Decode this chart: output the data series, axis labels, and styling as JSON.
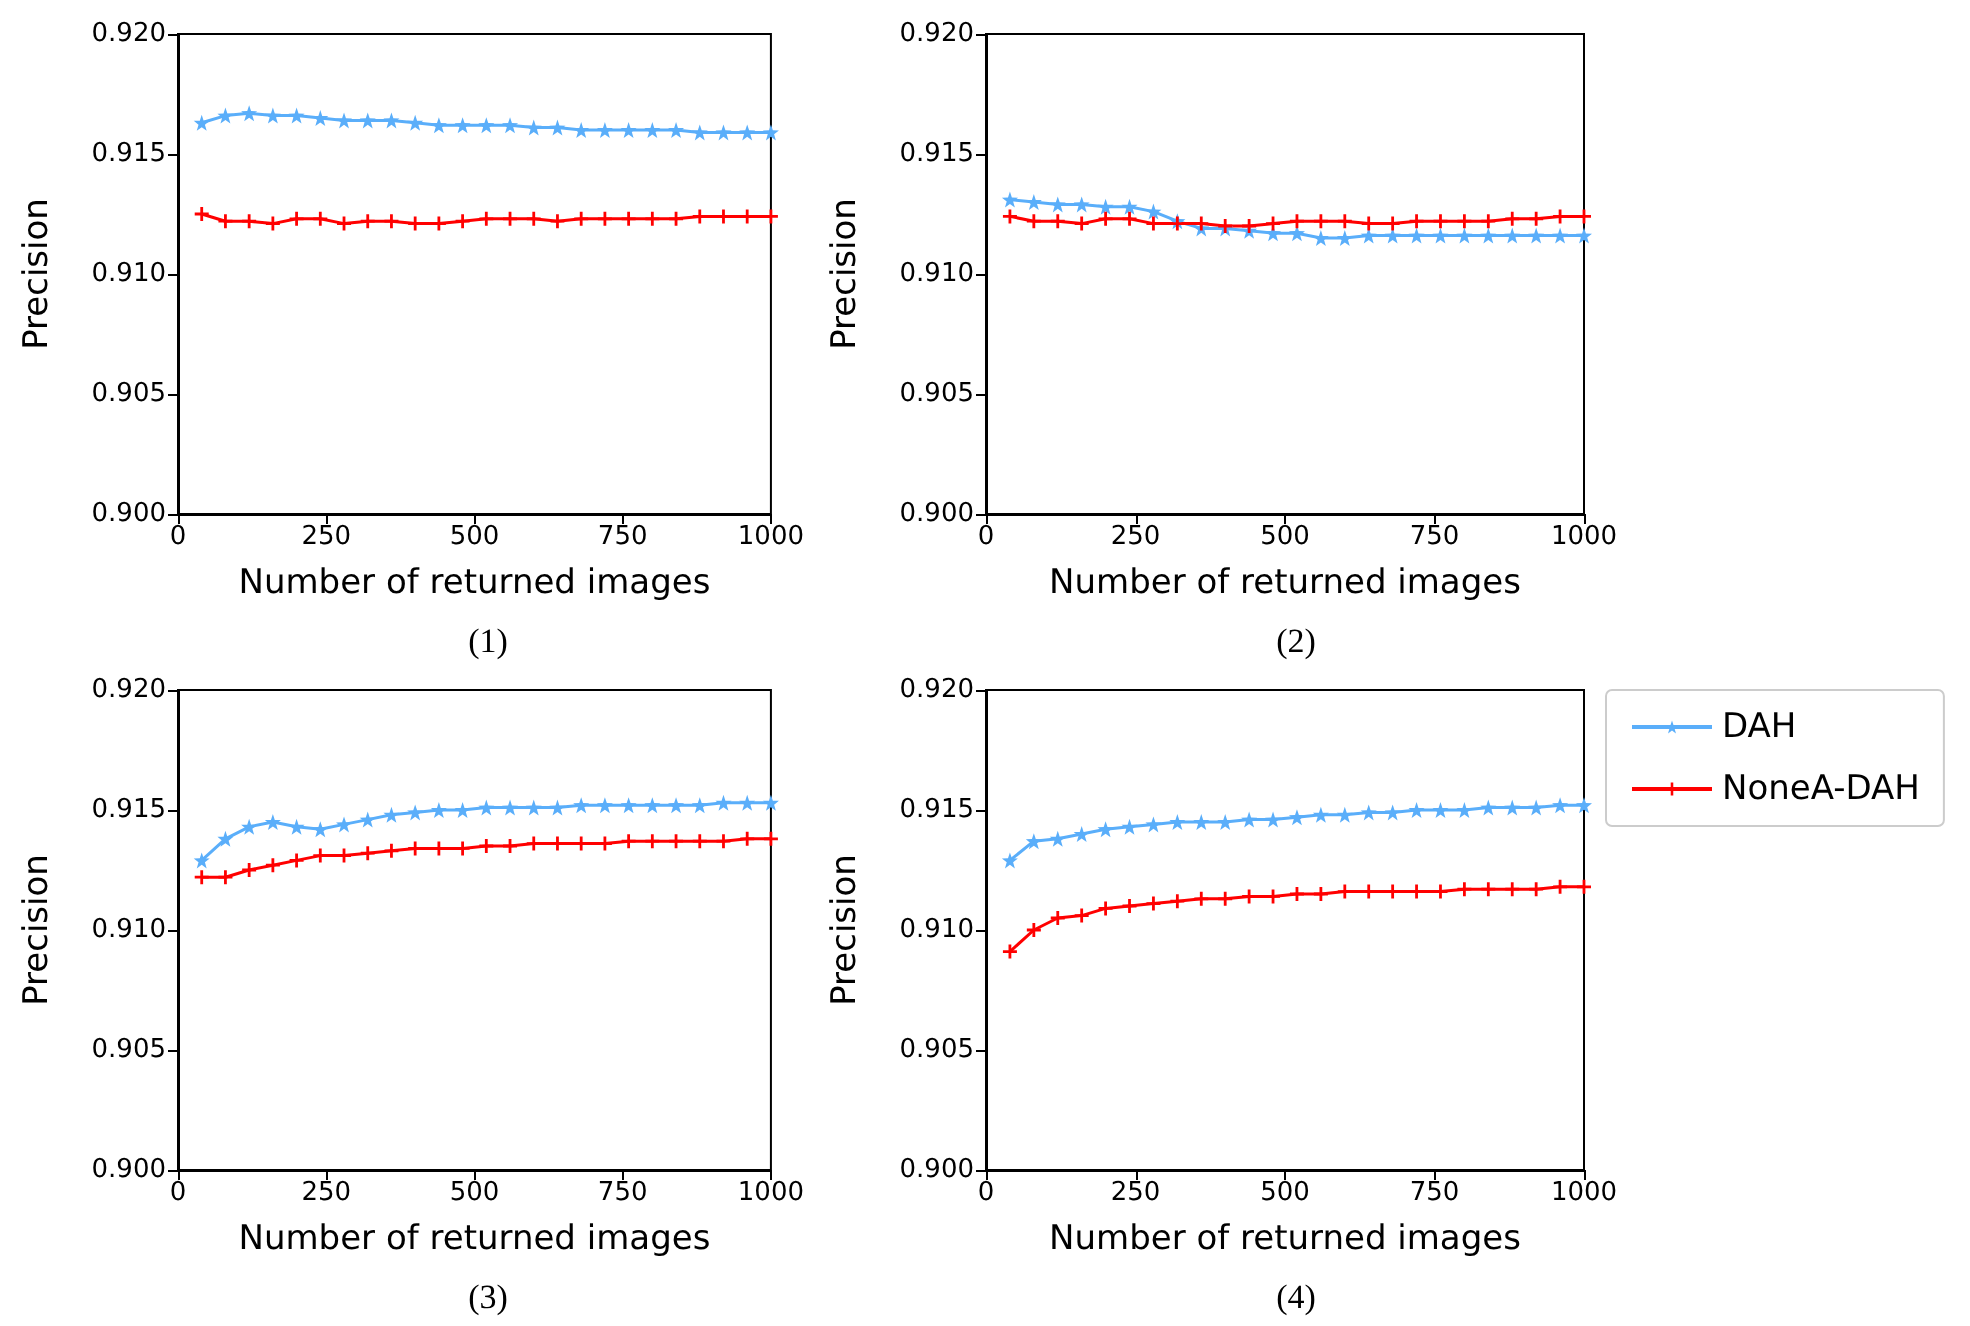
{
  "chart_data": [
    {
      "type": "line",
      "title": "(1)",
      "xlabel": "Number of returned images",
      "ylabel": "Precision",
      "xlim": [
        0,
        1000
      ],
      "xticks": [
        0,
        250,
        500,
        750,
        1000
      ],
      "ylim": [
        0.9,
        0.92
      ],
      "yticks": [
        {
          "value": 0.9,
          "label": "0.900"
        },
        {
          "value": 0.905,
          "label": "0.905"
        },
        {
          "value": 0.91,
          "label": "0.910"
        },
        {
          "value": 0.915,
          "label": "0.915"
        },
        {
          "value": 0.92,
          "label": "0.920"
        }
      ],
      "grid": false,
      "legend": false,
      "x": [
        40,
        80,
        120,
        160,
        200,
        240,
        280,
        320,
        360,
        400,
        440,
        480,
        520,
        560,
        600,
        640,
        680,
        720,
        760,
        800,
        840,
        880,
        920,
        960,
        1000
      ],
      "series": [
        {
          "color": "#5aaefa",
          "marker": "star",
          "values": [
            0.9163,
            0.9166,
            0.9167,
            0.9166,
            0.9166,
            0.9165,
            0.9164,
            0.9164,
            0.9164,
            0.9163,
            0.9162,
            0.9162,
            0.9162,
            0.9162,
            0.9161,
            0.9161,
            0.916,
            0.916,
            0.916,
            0.916,
            0.916,
            0.9159,
            0.9159,
            0.9159,
            0.9159
          ]
        },
        {
          "color": "#ff0000",
          "marker": "cross",
          "values": [
            0.9125,
            0.9122,
            0.9122,
            0.9121,
            0.9123,
            0.9123,
            0.9121,
            0.9122,
            0.9122,
            0.9121,
            0.9121,
            0.9122,
            0.9123,
            0.9123,
            0.9123,
            0.9122,
            0.9123,
            0.9123,
            0.9123,
            0.9123,
            0.9123,
            0.9124,
            0.9124,
            0.9124,
            0.9124
          ]
        }
      ]
    },
    {
      "type": "line",
      "title": "(2)",
      "xlabel": "Number of returned images",
      "ylabel": "Precision",
      "xlim": [
        0,
        1000
      ],
      "xticks": [
        0,
        250,
        500,
        750,
        1000
      ],
      "ylim": [
        0.9,
        0.92
      ],
      "yticks": [
        {
          "value": 0.9,
          "label": "0.900"
        },
        {
          "value": 0.905,
          "label": "0.905"
        },
        {
          "value": 0.91,
          "label": "0.910"
        },
        {
          "value": 0.915,
          "label": "0.915"
        },
        {
          "value": 0.92,
          "label": "0.920"
        }
      ],
      "grid": false,
      "legend": false,
      "x": [
        40,
        80,
        120,
        160,
        200,
        240,
        280,
        320,
        360,
        400,
        440,
        480,
        520,
        560,
        600,
        640,
        680,
        720,
        760,
        800,
        840,
        880,
        920,
        960,
        1000
      ],
      "series": [
        {
          "color": "#5aaefa",
          "marker": "star",
          "values": [
            0.9131,
            0.913,
            0.9129,
            0.9129,
            0.9128,
            0.9128,
            0.9126,
            0.9122,
            0.9119,
            0.9119,
            0.9118,
            0.9117,
            0.9117,
            0.9115,
            0.9115,
            0.9116,
            0.9116,
            0.9116,
            0.9116,
            0.9116,
            0.9116,
            0.9116,
            0.9116,
            0.9116,
            0.9116
          ]
        },
        {
          "color": "#ff0000",
          "marker": "cross",
          "values": [
            0.9124,
            0.9122,
            0.9122,
            0.9121,
            0.9123,
            0.9123,
            0.9121,
            0.9121,
            0.9121,
            0.912,
            0.912,
            0.9121,
            0.9122,
            0.9122,
            0.9122,
            0.9121,
            0.9121,
            0.9122,
            0.9122,
            0.9122,
            0.9122,
            0.9123,
            0.9123,
            0.9124,
            0.9124
          ]
        }
      ]
    },
    {
      "type": "line",
      "title": "(3)",
      "xlabel": "Number of returned images",
      "ylabel": "Precision",
      "xlim": [
        0,
        1000
      ],
      "xticks": [
        0,
        250,
        500,
        750,
        1000
      ],
      "ylim": [
        0.9,
        0.92
      ],
      "yticks": [
        {
          "value": 0.9,
          "label": "0.900"
        },
        {
          "value": 0.905,
          "label": "0.905"
        },
        {
          "value": 0.91,
          "label": "0.910"
        },
        {
          "value": 0.915,
          "label": "0.915"
        },
        {
          "value": 0.92,
          "label": "0.920"
        }
      ],
      "grid": false,
      "legend": false,
      "x": [
        40,
        80,
        120,
        160,
        200,
        240,
        280,
        320,
        360,
        400,
        440,
        480,
        520,
        560,
        600,
        640,
        680,
        720,
        760,
        800,
        840,
        880,
        920,
        960,
        1000
      ],
      "series": [
        {
          "color": "#5aaefa",
          "marker": "star",
          "values": [
            0.9129,
            0.9138,
            0.9143,
            0.9145,
            0.9143,
            0.9142,
            0.9144,
            0.9146,
            0.9148,
            0.9149,
            0.915,
            0.915,
            0.9151,
            0.9151,
            0.9151,
            0.9151,
            0.9152,
            0.9152,
            0.9152,
            0.9152,
            0.9152,
            0.9152,
            0.9153,
            0.9153,
            0.9153
          ]
        },
        {
          "color": "#ff0000",
          "marker": "cross",
          "values": [
            0.9122,
            0.9122,
            0.9125,
            0.9127,
            0.9129,
            0.9131,
            0.9131,
            0.9132,
            0.9133,
            0.9134,
            0.9134,
            0.9134,
            0.9135,
            0.9135,
            0.9136,
            0.9136,
            0.9136,
            0.9136,
            0.9137,
            0.9137,
            0.9137,
            0.9137,
            0.9137,
            0.9138,
            0.9138
          ]
        }
      ]
    },
    {
      "type": "line",
      "title": "(4)",
      "xlabel": "Number of returned images",
      "ylabel": "Precision",
      "xlim": [
        0,
        1000
      ],
      "xticks": [
        0,
        250,
        500,
        750,
        1000
      ],
      "ylim": [
        0.9,
        0.92
      ],
      "yticks": [
        {
          "value": 0.9,
          "label": "0.900"
        },
        {
          "value": 0.905,
          "label": "0.905"
        },
        {
          "value": 0.91,
          "label": "0.910"
        },
        {
          "value": 0.915,
          "label": "0.915"
        },
        {
          "value": 0.92,
          "label": "0.920"
        }
      ],
      "grid": false,
      "legend": "right",
      "x": [
        40,
        80,
        120,
        160,
        200,
        240,
        280,
        320,
        360,
        400,
        440,
        480,
        520,
        560,
        600,
        640,
        680,
        720,
        760,
        800,
        840,
        880,
        920,
        960,
        1000
      ],
      "series": [
        {
          "name": "DAH",
          "color": "#5aaefa",
          "marker": "star",
          "values": [
            0.9129,
            0.9137,
            0.9138,
            0.914,
            0.9142,
            0.9143,
            0.9144,
            0.9145,
            0.9145,
            0.9145,
            0.9146,
            0.9146,
            0.9147,
            0.9148,
            0.9148,
            0.9149,
            0.9149,
            0.915,
            0.915,
            0.915,
            0.9151,
            0.9151,
            0.9151,
            0.9152,
            0.9152
          ]
        },
        {
          "name": "NoneA-DAH",
          "color": "#ff0000",
          "marker": "cross",
          "values": [
            0.9091,
            0.91,
            0.9105,
            0.9106,
            0.9109,
            0.911,
            0.9111,
            0.9112,
            0.9113,
            0.9113,
            0.9114,
            0.9114,
            0.9115,
            0.9115,
            0.9116,
            0.9116,
            0.9116,
            0.9116,
            0.9116,
            0.9117,
            0.9117,
            0.9117,
            0.9117,
            0.9118,
            0.9118
          ]
        }
      ]
    }
  ]
}
